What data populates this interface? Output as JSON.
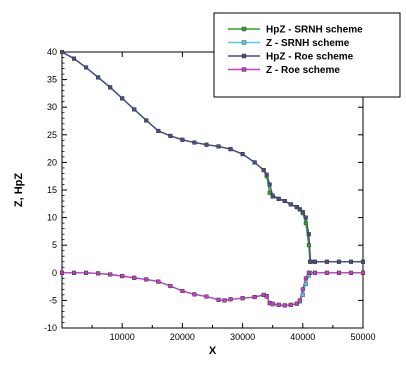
{
  "chart_data": {
    "type": "line",
    "xlabel": "X",
    "ylabel": "Z, HpZ",
    "xlim": [
      0,
      50000
    ],
    "ylim": [
      -10,
      40
    ],
    "x_ticks": [
      10000,
      20000,
      30000,
      40000,
      50000
    ],
    "y_ticks": [
      -10,
      -5,
      0,
      5,
      10,
      15,
      20,
      25,
      30,
      35,
      40
    ],
    "grid": false,
    "legend_position": "top-right",
    "series": [
      {
        "name": "HpZ - SRNH scheme",
        "color": "#33a02c",
        "marker": "square",
        "points": [
          [
            0,
            40
          ],
          [
            2000,
            38.8
          ],
          [
            4000,
            37.2
          ],
          [
            6000,
            35.4
          ],
          [
            8000,
            33.6
          ],
          [
            10000,
            31.6
          ],
          [
            12000,
            29.6
          ],
          [
            14000,
            27.6
          ],
          [
            16000,
            25.7
          ],
          [
            18000,
            24.8
          ],
          [
            20000,
            24.1
          ],
          [
            22000,
            23.6
          ],
          [
            24000,
            23.2
          ],
          [
            26000,
            22.9
          ],
          [
            28000,
            22.4
          ],
          [
            30000,
            21.5
          ],
          [
            32000,
            20.0
          ],
          [
            33500,
            18.6
          ],
          [
            34000,
            17.5
          ],
          [
            34500,
            14.5
          ],
          [
            35000,
            13.8
          ],
          [
            36000,
            13.4
          ],
          [
            37000,
            13.0
          ],
          [
            38000,
            12.4
          ],
          [
            39000,
            11.9
          ],
          [
            39500,
            11.5
          ],
          [
            40000,
            10.8
          ],
          [
            40500,
            9.0
          ],
          [
            41000,
            5.0
          ],
          [
            41200,
            2.0
          ],
          [
            42000,
            2.0
          ],
          [
            44000,
            2.0
          ],
          [
            46000,
            2.0
          ],
          [
            48000,
            2.0
          ],
          [
            50000,
            2.0
          ]
        ]
      },
      {
        "name": "Z - SRNH scheme",
        "color": "#5bc8e8",
        "marker": "square",
        "points": [
          [
            0,
            0
          ],
          [
            2000,
            0
          ],
          [
            4000,
            0
          ],
          [
            6000,
            -0.1
          ],
          [
            8000,
            -0.3
          ],
          [
            10000,
            -0.6
          ],
          [
            12000,
            -0.9
          ],
          [
            14000,
            -1.2
          ],
          [
            16000,
            -1.6
          ],
          [
            18000,
            -2.4
          ],
          [
            20000,
            -3.3
          ],
          [
            22000,
            -3.9
          ],
          [
            24000,
            -4.3
          ],
          [
            26000,
            -4.9
          ],
          [
            27000,
            -5.0
          ],
          [
            28000,
            -4.8
          ],
          [
            30000,
            -4.6
          ],
          [
            32000,
            -4.4
          ],
          [
            33500,
            -4.0
          ],
          [
            34000,
            -4.2
          ],
          [
            34500,
            -5.5
          ],
          [
            35000,
            -5.6
          ],
          [
            36000,
            -5.8
          ],
          [
            37000,
            -5.9
          ],
          [
            38000,
            -5.8
          ],
          [
            39000,
            -5.6
          ],
          [
            39500,
            -5.2
          ],
          [
            40000,
            -4.0
          ],
          [
            40500,
            -2.0
          ],
          [
            41000,
            -0.5
          ],
          [
            41200,
            0
          ],
          [
            42000,
            0
          ],
          [
            44000,
            0
          ],
          [
            46000,
            0
          ],
          [
            48000,
            0
          ],
          [
            50000,
            0
          ]
        ]
      },
      {
        "name": "HpZ - Roe scheme",
        "color": "#4a4a8c",
        "marker": "square",
        "points": [
          [
            0,
            40
          ],
          [
            2000,
            38.8
          ],
          [
            4000,
            37.2
          ],
          [
            6000,
            35.4
          ],
          [
            8000,
            33.6
          ],
          [
            10000,
            31.6
          ],
          [
            12000,
            29.6
          ],
          [
            14000,
            27.6
          ],
          [
            16000,
            25.7
          ],
          [
            18000,
            24.8
          ],
          [
            20000,
            24.1
          ],
          [
            22000,
            23.6
          ],
          [
            24000,
            23.2
          ],
          [
            26000,
            22.9
          ],
          [
            28000,
            22.4
          ],
          [
            30000,
            21.5
          ],
          [
            32000,
            20.0
          ],
          [
            33500,
            18.6
          ],
          [
            34000,
            17.8
          ],
          [
            34500,
            16.0
          ],
          [
            35000,
            14.0
          ],
          [
            36000,
            13.4
          ],
          [
            37000,
            13.0
          ],
          [
            38000,
            12.4
          ],
          [
            39000,
            11.9
          ],
          [
            39500,
            11.5
          ],
          [
            40000,
            11.0
          ],
          [
            40500,
            10.0
          ],
          [
            41000,
            7.0
          ],
          [
            41300,
            2.0
          ],
          [
            42000,
            2.0
          ],
          [
            44000,
            2.0
          ],
          [
            46000,
            2.0
          ],
          [
            48000,
            2.0
          ],
          [
            50000,
            2.0
          ]
        ]
      },
      {
        "name": "Z - Roe scheme",
        "color": "#c040c0",
        "marker": "square",
        "points": [
          [
            0,
            0
          ],
          [
            2000,
            0
          ],
          [
            4000,
            0
          ],
          [
            6000,
            -0.1
          ],
          [
            8000,
            -0.3
          ],
          [
            10000,
            -0.6
          ],
          [
            12000,
            -0.9
          ],
          [
            14000,
            -1.2
          ],
          [
            16000,
            -1.6
          ],
          [
            18000,
            -2.4
          ],
          [
            20000,
            -3.3
          ],
          [
            22000,
            -3.9
          ],
          [
            24000,
            -4.3
          ],
          [
            26000,
            -4.9
          ],
          [
            27000,
            -5.0
          ],
          [
            28000,
            -4.8
          ],
          [
            30000,
            -4.6
          ],
          [
            32000,
            -4.4
          ],
          [
            33500,
            -4.0
          ],
          [
            34000,
            -4.3
          ],
          [
            34500,
            -5.5
          ],
          [
            35000,
            -5.7
          ],
          [
            36000,
            -5.8
          ],
          [
            37000,
            -5.9
          ],
          [
            38000,
            -5.8
          ],
          [
            39000,
            -5.6
          ],
          [
            39500,
            -5.0
          ],
          [
            40000,
            -3.0
          ],
          [
            40500,
            -1.0
          ],
          [
            41000,
            0
          ],
          [
            42000,
            0
          ],
          [
            44000,
            0
          ],
          [
            46000,
            0
          ],
          [
            48000,
            0
          ],
          [
            50000,
            0
          ]
        ]
      }
    ]
  }
}
